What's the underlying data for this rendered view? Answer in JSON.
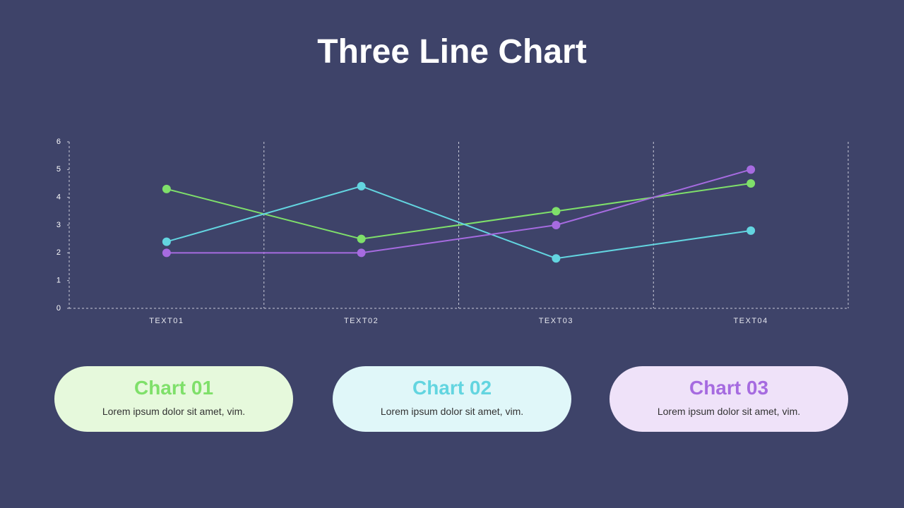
{
  "chart_data": {
    "type": "line",
    "title": "Three Line Chart",
    "categories": [
      "TEXT01",
      "TEXT02",
      "TEXT03",
      "TEXT04"
    ],
    "series": [
      {
        "name": "Chart 01",
        "color": "#7fe06a",
        "values": [
          4.3,
          2.5,
          3.5,
          4.5
        ]
      },
      {
        "name": "Chart 02",
        "color": "#63d5e0",
        "values": [
          2.4,
          4.4,
          1.8,
          2.8
        ]
      },
      {
        "name": "Chart 03",
        "color": "#a66be0",
        "values": [
          2.0,
          2.0,
          3.0,
          5.0
        ]
      }
    ],
    "ylim": [
      0,
      6
    ],
    "yticks": [
      0,
      1,
      2,
      3,
      4,
      5,
      6
    ]
  },
  "cards": [
    {
      "text": "Lorem ipsum dolor sit amet, vim.",
      "background": "#e6f9dc"
    },
    {
      "text": "Lorem ipsum dolor sit amet, vim.",
      "background": "#e0f7f9"
    },
    {
      "text": "Lorem ipsum dolor sit amet, vim.",
      "background": "#efe2f9"
    }
  ]
}
